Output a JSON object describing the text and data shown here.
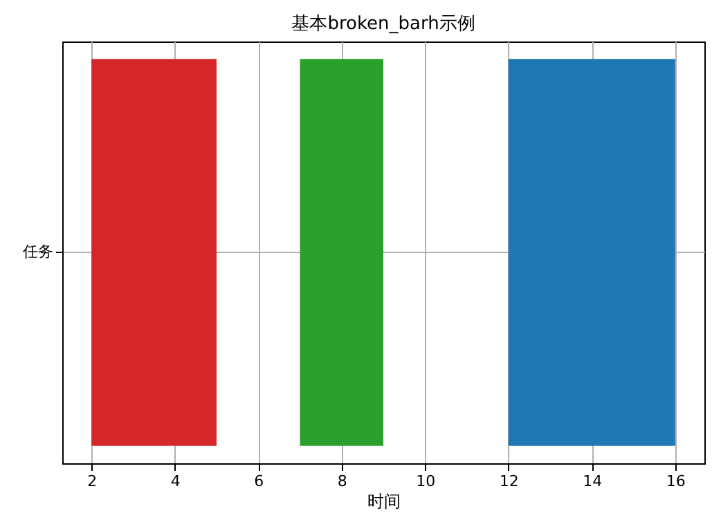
{
  "chart_data": {
    "type": "bar",
    "orientation": "horizontal",
    "title": "基本broken_barh示例",
    "xlabel": "时间",
    "categories": [
      "任务"
    ],
    "series": [
      {
        "color": "#d62728",
        "values": [
          3
        ],
        "base": [
          2
        ]
      },
      {
        "color": "#2ca02c",
        "values": [
          2
        ],
        "base": [
          7
        ]
      },
      {
        "color": "#1f77b4",
        "values": [
          4
        ],
        "base": [
          12
        ]
      }
    ],
    "xlim": [
      1.3,
      16.7
    ],
    "xticks": [
      2,
      4,
      6,
      8,
      10,
      12,
      14,
      16
    ],
    "grid": true
  }
}
